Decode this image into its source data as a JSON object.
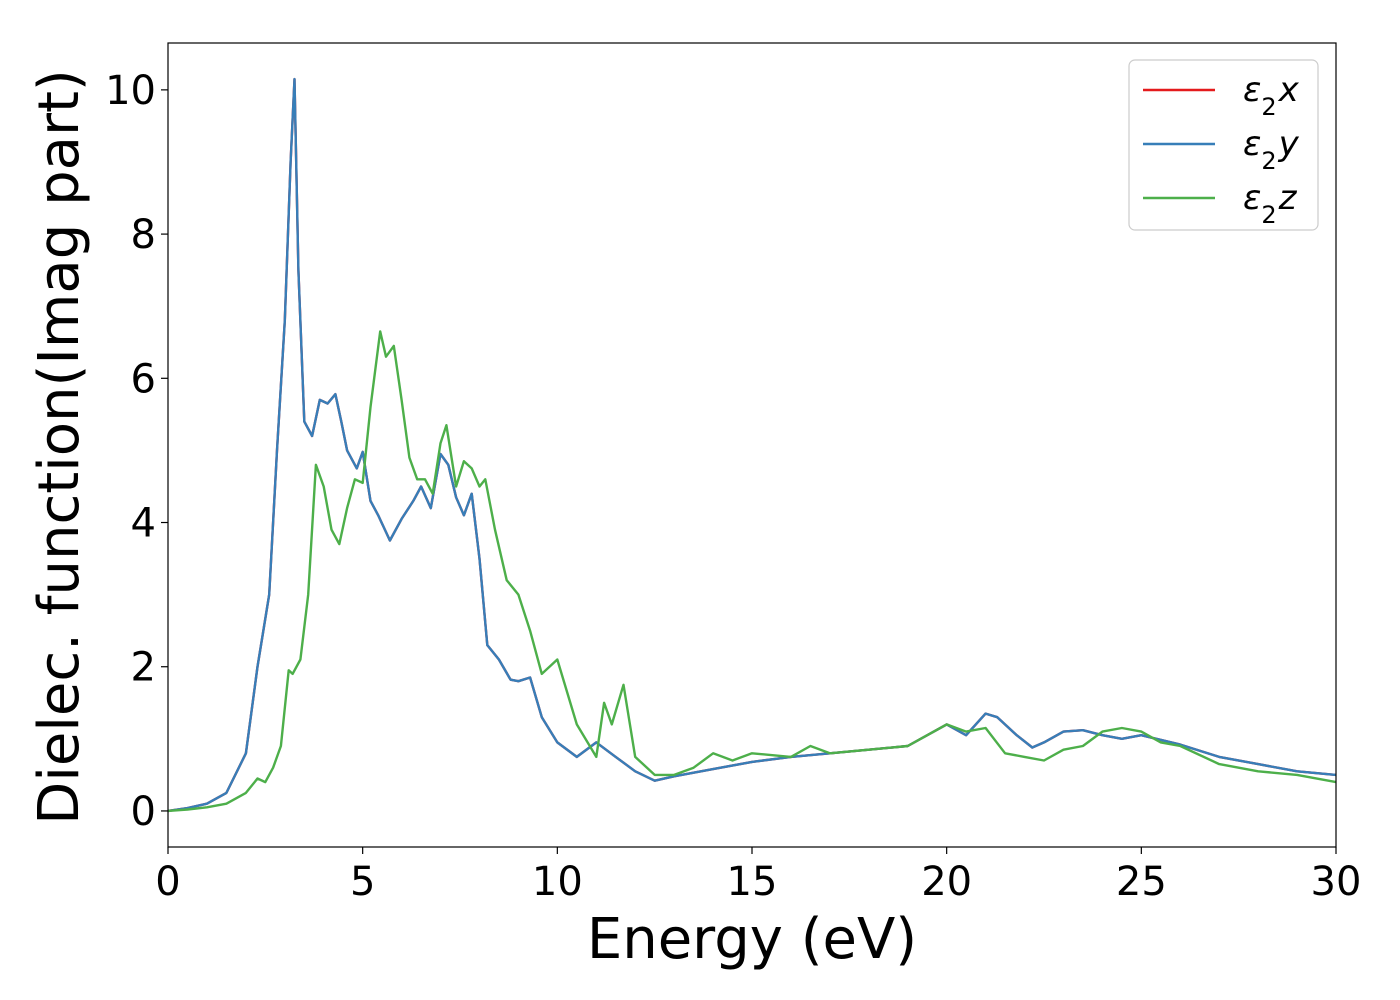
{
  "chart_data": {
    "type": "line",
    "title": "",
    "xlabel": "Energy (eV)",
    "ylabel": "Dielec. function(Imag part)",
    "xlim": [
      0,
      30
    ],
    "ylim": [
      -0.5,
      10.65
    ],
    "xticks": [
      0,
      5,
      10,
      15,
      20,
      25,
      30
    ],
    "yticks": [
      0,
      2,
      4,
      6,
      8,
      10
    ],
    "grid": false,
    "legend_position": "top-right",
    "series": [
      {
        "name": "ε2x",
        "color": "#e41a1c",
        "x": [
          0,
          0.5,
          1,
          1.5,
          2,
          2.3,
          2.6,
          2.8,
          3.0,
          3.15,
          3.25,
          3.35,
          3.5,
          3.7,
          3.9,
          4.1,
          4.3,
          4.45,
          4.6,
          4.85,
          5.0,
          5.2,
          5.4,
          5.7,
          6.0,
          6.3,
          6.5,
          6.75,
          7.0,
          7.2,
          7.4,
          7.6,
          7.8,
          8.0,
          8.2,
          8.5,
          8.8,
          9.0,
          9.3,
          9.6,
          10.0,
          10.5,
          11.0,
          11.5,
          12.0,
          12.5,
          13.0,
          14.0,
          15.0,
          16.0,
          17.0,
          18.0,
          19.0,
          20.0,
          20.5,
          21.0,
          21.3,
          21.8,
          22.2,
          22.5,
          23.0,
          23.5,
          24.0,
          24.5,
          25.0,
          26.0,
          27.0,
          28.0,
          29.0,
          30.0
        ],
        "values": [
          0,
          0.04,
          0.1,
          0.25,
          0.8,
          2.0,
          3.0,
          5.0,
          6.8,
          9.0,
          10.15,
          7.5,
          5.4,
          5.2,
          5.7,
          5.65,
          5.78,
          5.4,
          5.0,
          4.75,
          4.98,
          4.3,
          4.1,
          3.75,
          4.05,
          4.3,
          4.5,
          4.2,
          4.95,
          4.8,
          4.35,
          4.1,
          4.4,
          3.5,
          2.3,
          2.1,
          1.82,
          1.8,
          1.85,
          1.3,
          0.95,
          0.75,
          0.95,
          0.75,
          0.55,
          0.42,
          0.48,
          0.58,
          0.68,
          0.75,
          0.8,
          0.85,
          0.9,
          1.2,
          1.05,
          1.35,
          1.3,
          1.05,
          0.88,
          0.95,
          1.1,
          1.12,
          1.05,
          1.0,
          1.05,
          0.92,
          0.75,
          0.65,
          0.55,
          0.5
        ]
      },
      {
        "name": "ε2y",
        "color": "#377eb8",
        "x": [
          0,
          0.5,
          1,
          1.5,
          2,
          2.3,
          2.6,
          2.8,
          3.0,
          3.15,
          3.25,
          3.35,
          3.5,
          3.7,
          3.9,
          4.1,
          4.3,
          4.45,
          4.6,
          4.85,
          5.0,
          5.2,
          5.4,
          5.7,
          6.0,
          6.3,
          6.5,
          6.75,
          7.0,
          7.2,
          7.4,
          7.6,
          7.8,
          8.0,
          8.2,
          8.5,
          8.8,
          9.0,
          9.3,
          9.6,
          10.0,
          10.5,
          11.0,
          11.5,
          12.0,
          12.5,
          13.0,
          14.0,
          15.0,
          16.0,
          17.0,
          18.0,
          19.0,
          20.0,
          20.5,
          21.0,
          21.3,
          21.8,
          22.2,
          22.5,
          23.0,
          23.5,
          24.0,
          24.5,
          25.0,
          26.0,
          27.0,
          28.0,
          29.0,
          30.0
        ],
        "values": [
          0,
          0.04,
          0.1,
          0.25,
          0.8,
          2.0,
          3.0,
          5.0,
          6.8,
          9.0,
          10.15,
          7.5,
          5.4,
          5.2,
          5.7,
          5.65,
          5.78,
          5.4,
          5.0,
          4.75,
          4.98,
          4.3,
          4.1,
          3.75,
          4.05,
          4.3,
          4.5,
          4.2,
          4.95,
          4.8,
          4.35,
          4.1,
          4.4,
          3.5,
          2.3,
          2.1,
          1.82,
          1.8,
          1.85,
          1.3,
          0.95,
          0.75,
          0.95,
          0.75,
          0.55,
          0.42,
          0.48,
          0.58,
          0.68,
          0.75,
          0.8,
          0.85,
          0.9,
          1.2,
          1.05,
          1.35,
          1.3,
          1.05,
          0.88,
          0.95,
          1.1,
          1.12,
          1.05,
          1.0,
          1.05,
          0.92,
          0.75,
          0.65,
          0.55,
          0.5
        ]
      },
      {
        "name": "ε2z",
        "color": "#4daf4a",
        "x": [
          0,
          0.5,
          1,
          1.5,
          2,
          2.3,
          2.5,
          2.7,
          2.9,
          3.1,
          3.2,
          3.4,
          3.6,
          3.8,
          4.0,
          4.2,
          4.4,
          4.6,
          4.8,
          5.0,
          5.2,
          5.45,
          5.6,
          5.8,
          6.0,
          6.2,
          6.4,
          6.6,
          6.8,
          7.0,
          7.15,
          7.4,
          7.6,
          7.8,
          8.0,
          8.15,
          8.4,
          8.7,
          9.0,
          9.3,
          9.6,
          10.0,
          10.5,
          11.0,
          11.2,
          11.4,
          11.7,
          12.0,
          12.5,
          13.0,
          13.5,
          14.0,
          14.5,
          15.0,
          16.0,
          16.5,
          17.0,
          18.0,
          19.0,
          20.0,
          20.5,
          21.0,
          21.5,
          22.0,
          22.5,
          23.0,
          23.5,
          24.0,
          24.5,
          25.0,
          25.5,
          26.0,
          27.0,
          28.0,
          29.0,
          30.0
        ],
        "values": [
          0,
          0.02,
          0.05,
          0.1,
          0.25,
          0.45,
          0.4,
          0.6,
          0.9,
          1.95,
          1.9,
          2.1,
          3.0,
          4.8,
          4.5,
          3.9,
          3.7,
          4.2,
          4.6,
          4.55,
          5.6,
          6.65,
          6.3,
          6.45,
          5.7,
          4.9,
          4.6,
          4.6,
          4.4,
          5.1,
          5.35,
          4.5,
          4.85,
          4.75,
          4.5,
          4.6,
          3.9,
          3.2,
          3.0,
          2.5,
          1.9,
          2.1,
          1.2,
          0.75,
          1.5,
          1.2,
          1.75,
          0.75,
          0.5,
          0.5,
          0.6,
          0.8,
          0.7,
          0.8,
          0.75,
          0.9,
          0.8,
          0.85,
          0.9,
          1.2,
          1.1,
          1.15,
          0.8,
          0.75,
          0.7,
          0.85,
          0.9,
          1.1,
          1.15,
          1.1,
          0.95,
          0.9,
          0.65,
          0.55,
          0.5,
          0.4
        ]
      }
    ]
  },
  "legend": {
    "entries": [
      {
        "name": "ε",
        "sub": "2",
        "var": "x",
        "color": "#e41a1c"
      },
      {
        "name": "ε",
        "sub": "2",
        "var": "y",
        "color": "#377eb8"
      },
      {
        "name": "ε",
        "sub": "2",
        "var": "z",
        "color": "#4daf4a"
      }
    ]
  }
}
